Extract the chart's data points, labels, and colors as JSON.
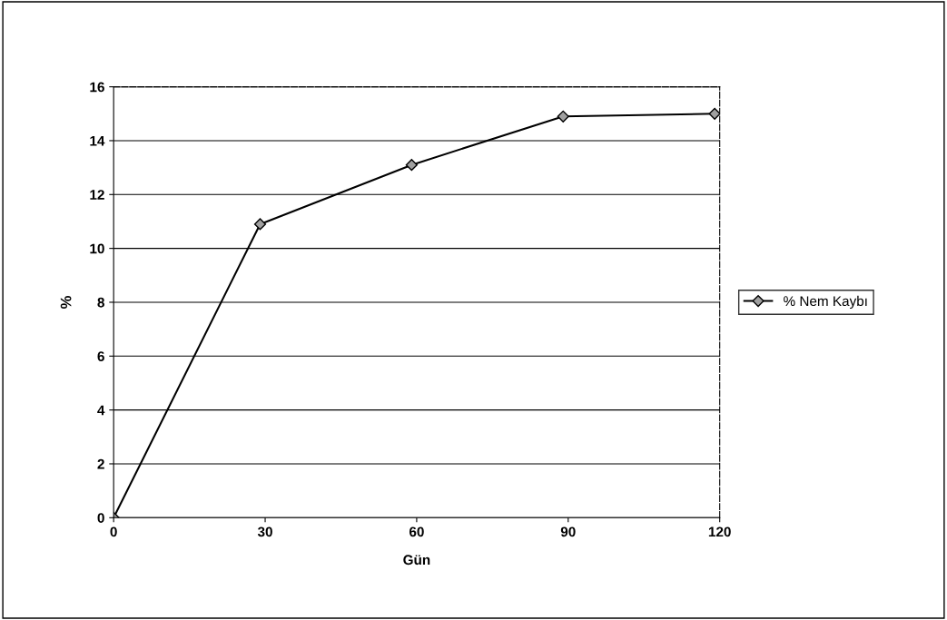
{
  "chart_data": {
    "type": "line",
    "xlabel": "Gün",
    "ylabel": "%",
    "x": [
      0,
      29,
      59,
      89,
      119
    ],
    "series": [
      {
        "name": "% Nem Kaybı",
        "color": "#000000",
        "values": [
          0,
          10.9,
          13.1,
          14.9,
          15.0
        ]
      }
    ],
    "xlim": [
      0,
      120
    ],
    "xticks": [
      0,
      30,
      60,
      90,
      120
    ],
    "ylim": [
      0,
      16
    ],
    "yticks": [
      0,
      2,
      4,
      6,
      8,
      10,
      12,
      14,
      16
    ],
    "grid": "y",
    "legend": "right",
    "marker": "diamond",
    "line_style": "solid"
  }
}
